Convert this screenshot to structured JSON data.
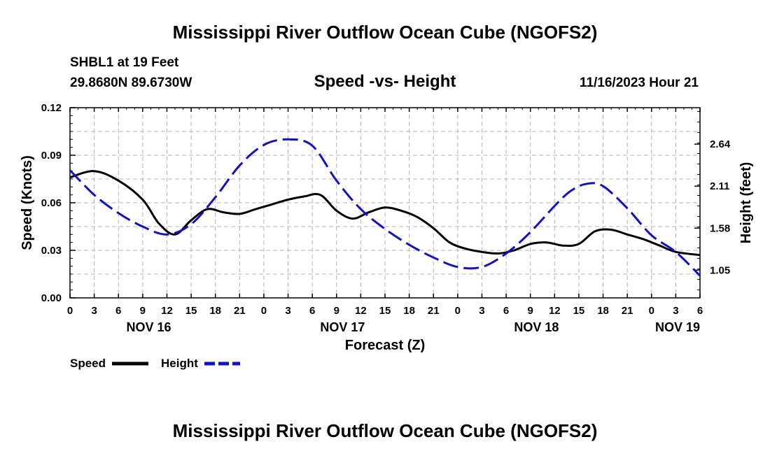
{
  "header": {
    "title": "Mississippi River Outflow Ocean Cube (NGOFS2)",
    "station": "SHBL1 at 19 Feet",
    "coords": "29.8680N  89.6730W",
    "subtitle": "Speed -vs- Height",
    "datetime": "11/16/2023 Hour 21"
  },
  "footer": {
    "title": "Mississippi River Outflow Ocean Cube (NGOFS2)"
  },
  "chart_data": {
    "type": "line",
    "title": "Speed -vs- Height",
    "xlabel": "Forecast (Z)",
    "ylabel": "Speed (Knots)",
    "y2label": "Height (feet)",
    "x_range_hours": [
      0,
      78
    ],
    "ylim": [
      0,
      0.12
    ],
    "y2lim": [
      0.7,
      3.1
    ],
    "y_ticks": [
      "0.00",
      "0.03",
      "0.06",
      "0.09",
      "0.12"
    ],
    "y2_ticks": [
      {
        "value": 1.05,
        "label": "1.05"
      },
      {
        "value": 1.58,
        "label": "1.58"
      },
      {
        "value": 2.11,
        "label": "2.11"
      },
      {
        "value": 2.64,
        "label": "2.64"
      }
    ],
    "x_tick_labels": [
      "0",
      "3",
      "6",
      "9",
      "12",
      "15",
      "18",
      "21",
      "0",
      "3",
      "6",
      "9",
      "12",
      "15",
      "18",
      "21",
      "0",
      "3",
      "6",
      "9",
      "12",
      "15",
      "18",
      "21",
      "0",
      "3",
      "6"
    ],
    "day_labels": [
      {
        "label": "NOV 16",
        "hour": 9.75
      },
      {
        "label": "NOV 17",
        "hour": 33.75
      },
      {
        "label": "NOV 18",
        "hour": 57.75
      },
      {
        "label": "NOV 19",
        "hour": 78
      }
    ],
    "grid": true,
    "legend_position": "bottom-left",
    "series": [
      {
        "name": "Speed",
        "axis": "left",
        "color": "#000000",
        "dash": "solid",
        "x": [
          0,
          3,
          6,
          9,
          11,
          13,
          15,
          17,
          19,
          21,
          23,
          25,
          27,
          29,
          31,
          33,
          35,
          37,
          39,
          41,
          43,
          45,
          47,
          49,
          51,
          53,
          55,
          57,
          59,
          61,
          63,
          65,
          67,
          69,
          71,
          73,
          75,
          78
        ],
        "y": [
          0.076,
          0.08,
          0.074,
          0.062,
          0.047,
          0.04,
          0.049,
          0.056,
          0.054,
          0.053,
          0.056,
          0.059,
          0.062,
          0.064,
          0.065,
          0.055,
          0.05,
          0.054,
          0.057,
          0.055,
          0.051,
          0.044,
          0.035,
          0.031,
          0.029,
          0.028,
          0.03,
          0.034,
          0.035,
          0.033,
          0.034,
          0.042,
          0.043,
          0.04,
          0.037,
          0.033,
          0.029,
          0.027
        ]
      },
      {
        "name": "Height",
        "axis": "right",
        "color": "#1010d0",
        "dash": "dashed",
        "x": [
          0,
          3,
          6,
          9,
          12,
          15,
          18,
          21,
          24,
          27,
          30,
          33,
          36,
          39,
          42,
          45,
          48,
          51,
          54,
          57,
          60,
          62,
          64,
          66,
          69,
          72,
          75,
          78
        ],
        "y": [
          2.31,
          2.0,
          1.77,
          1.6,
          1.5,
          1.63,
          1.97,
          2.37,
          2.63,
          2.7,
          2.62,
          2.18,
          1.82,
          1.57,
          1.37,
          1.21,
          1.09,
          1.09,
          1.26,
          1.53,
          1.86,
          2.05,
          2.14,
          2.11,
          1.83,
          1.49,
          1.28,
          0.98
        ]
      }
    ]
  }
}
